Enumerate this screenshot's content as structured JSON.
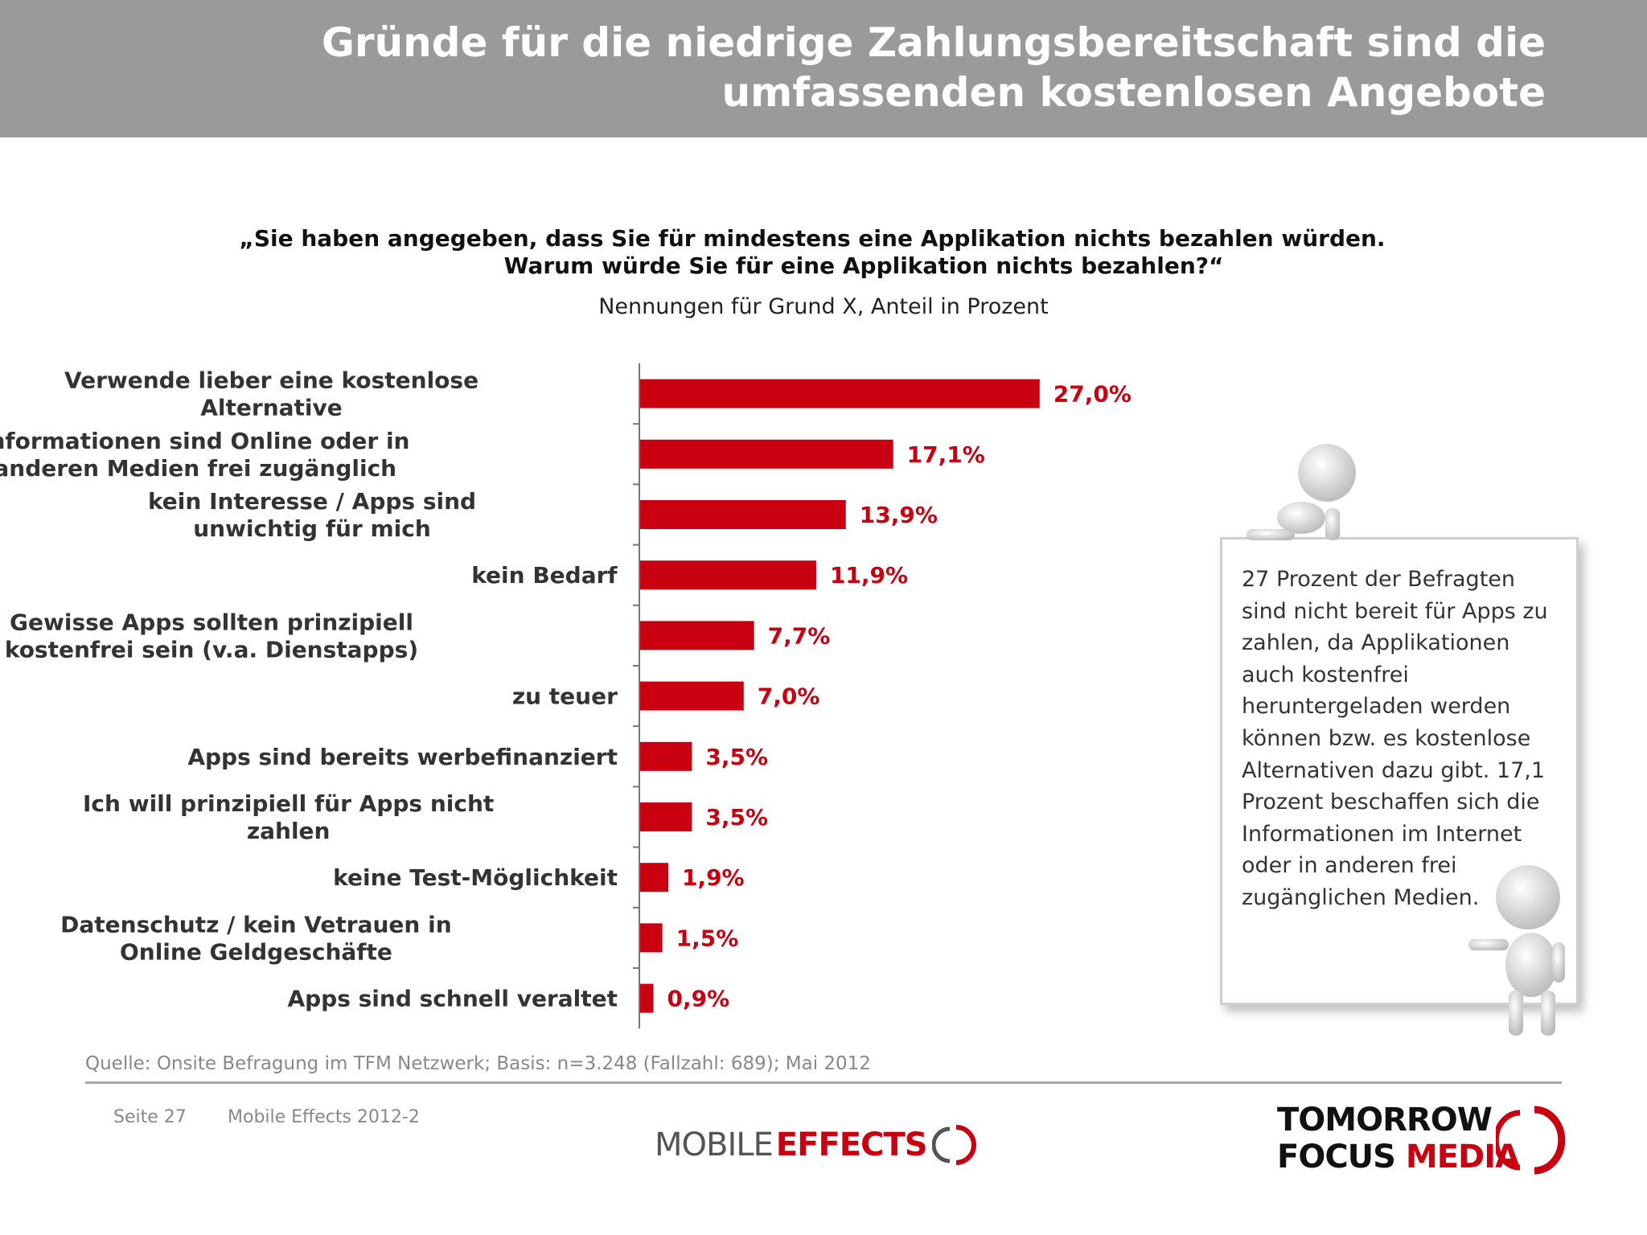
{
  "header": {
    "title": "Gründe für die niedrige Zahlungsbereitschaft sind die umfassenden kostenlosen Angebote"
  },
  "chart_data": {
    "type": "bar",
    "orientation": "horizontal",
    "title_lines": [
      "„Sie haben angegeben, dass Sie für mindestens eine Applikation nichts bezahlen würden.",
      "Warum würde Sie für eine Applikation nichts bezahlen?“"
    ],
    "subtitle": "Nennungen für Grund X, Anteil in Prozent",
    "categories": [
      [
        "Verwende lieber eine kostenlose",
        "Alternative"
      ],
      [
        "Informationen sind Online oder in",
        "anderen Medien frei zugänglich"
      ],
      [
        "kein Interesse / Apps sind",
        "unwichtig für mich"
      ],
      [
        "kein Bedarf"
      ],
      [
        "Gewisse Apps sollten prinzipiell",
        "kostenfrei sein (v.a. Dienstapps)"
      ],
      [
        "zu teuer"
      ],
      [
        "Apps sind bereits werbefinanziert"
      ],
      [
        "Ich will prinzipiell für Apps nicht",
        "zahlen"
      ],
      [
        "keine Test-Möglichkeit"
      ],
      [
        "Datenschutz / kein Vetrauen in",
        "Online Geldgeschäfte"
      ],
      [
        "Apps sind schnell veraltet"
      ]
    ],
    "values": [
      27.0,
      17.1,
      13.9,
      11.9,
      7.7,
      7.0,
      3.5,
      3.5,
      1.9,
      1.5,
      0.9
    ],
    "value_labels": [
      "27,0%",
      "17,1%",
      "13,9%",
      "11,9%",
      "7,7%",
      "7,0%",
      "3,5%",
      "3,5%",
      "1,9%",
      "1,5%",
      "0,9%"
    ],
    "bar_color": "#c8000f",
    "grid": false
  },
  "note": {
    "text": "27 Prozent der Befragten sind nicht bereit für Apps zu zahlen, da Applikationen auch kostenfrei heruntergeladen werden können bzw. es kostenlose Alternativen dazu gibt. 17,1 Prozent beschaffen sich die Informationen im Internet oder in anderen frei zugänglichen Medien."
  },
  "footer": {
    "source": "Quelle: Onsite Befragung im TFM Netzwerk; Basis: n=3.248 (Fallzahl: 689); Mai 2012",
    "page": "Seite 27",
    "document": "Mobile Effects 2012-2"
  },
  "logos": {
    "mobile_effects": {
      "mobile": "MOBILE",
      "effects": "EFFECTS"
    },
    "tomorrow_focus_media": {
      "tomorrow": "TOMORROW",
      "focus": "FOCUS",
      "media": "MEDIA"
    }
  },
  "colors": {
    "header_bg": "#9a9a9a",
    "accent": "#c8000f"
  }
}
